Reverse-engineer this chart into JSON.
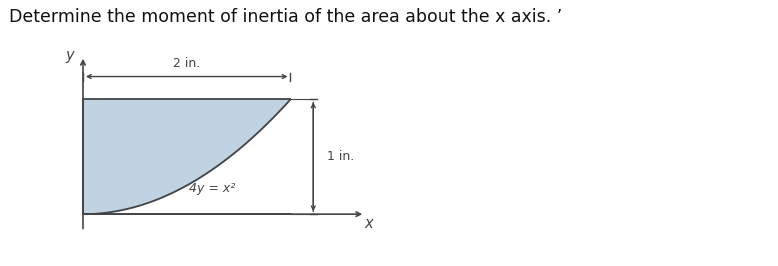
{
  "title": "Determine the moment of inertia of the area about the x axis. ’",
  "title_fontsize": 12.5,
  "bg_color": "#ffffff",
  "fill_color": "#b8cfe0",
  "fill_alpha": 0.9,
  "curve_color": "#444444",
  "axis_color": "#444444",
  "dim_color": "#444444",
  "label_2in": "2 in.",
  "label_1in": "1 in.",
  "label_eq": "4y = x²",
  "label_y": "y",
  "label_x": "x"
}
